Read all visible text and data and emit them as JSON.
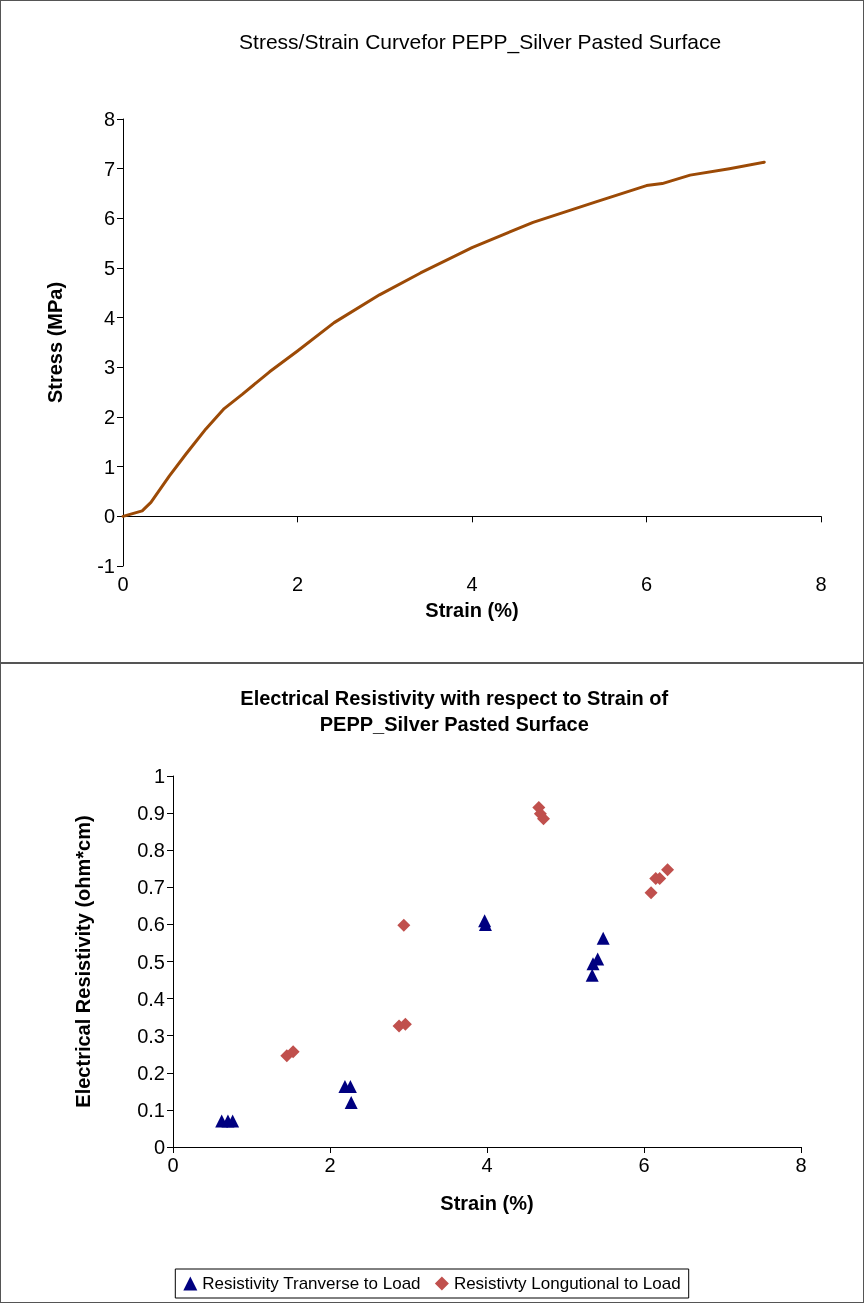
{
  "chart_data": [
    {
      "type": "line",
      "title": "Stress/Strain Curvefor PEPP_Silver Pasted Surface",
      "xlabel": "Strain (%)",
      "ylabel": "Stress (MPa)",
      "xlim": [
        0,
        8
      ],
      "xticks": [
        0,
        2,
        4,
        6,
        8
      ],
      "ylim": [
        -1,
        8
      ],
      "yticks": [
        -1,
        0,
        1,
        2,
        3,
        4,
        5,
        6,
        7,
        8
      ],
      "legend": false,
      "marker": "none",
      "line_style": "solid",
      "series": [
        {
          "color": "#9c4a06",
          "x": [
            0,
            0.22,
            0.32,
            0.53,
            0.72,
            0.95,
            1.16,
            1.37,
            1.68,
            2.0,
            2.42,
            2.94,
            3.41,
            4.0,
            4.7,
            5.42,
            6.0,
            6.18,
            6.5,
            6.95,
            7.35
          ],
          "values": [
            0,
            0.11,
            0.28,
            0.81,
            1.25,
            1.76,
            2.17,
            2.46,
            2.91,
            3.33,
            3.9,
            4.46,
            4.9,
            5.41,
            5.92,
            6.33,
            6.66,
            6.7,
            6.87,
            7.0,
            7.13
          ]
        }
      ]
    },
    {
      "type": "scatter",
      "title": "Electrical Resistivity with respect to Strain of\nPEPP_Silver Pasted Surface",
      "xlabel": "Strain (%)",
      "ylabel": "Electrical Resistivity (ohm*cm)",
      "xlim": [
        0,
        8
      ],
      "xticks": [
        0,
        2,
        4,
        6,
        8
      ],
      "ylim": [
        0,
        1
      ],
      "yticks": [
        0,
        0.1,
        0.2,
        0.3,
        0.4,
        0.5,
        0.6,
        0.7,
        0.8,
        0.9,
        1
      ],
      "grid": false,
      "legend": "bottom",
      "series": [
        {
          "name": "Resistivity Tranverse to Load",
          "color": "#000080",
          "marker": "triangle",
          "x": [
            0.62,
            0.7,
            0.76,
            2.19,
            2.26,
            2.27,
            3.97,
            3.98,
            5.48,
            5.41,
            5.35,
            5.34
          ],
          "values": [
            0.07,
            0.07,
            0.07,
            0.163,
            0.163,
            0.12,
            0.61,
            0.6,
            0.563,
            0.507,
            0.494,
            0.463
          ]
        },
        {
          "name": "Resistivty Longutional to Load",
          "color": "#c0504d",
          "marker": "diamond",
          "x": [
            2.94,
            2.88,
            2.96,
            1.45,
            1.53,
            4.66,
            4.68,
            4.72,
            6.3,
            6.2,
            6.15,
            6.09
          ],
          "values": [
            0.598,
            0.326,
            0.331,
            0.246,
            0.257,
            0.915,
            0.898,
            0.885,
            0.747,
            0.724,
            0.724,
            0.685
          ]
        }
      ]
    }
  ]
}
